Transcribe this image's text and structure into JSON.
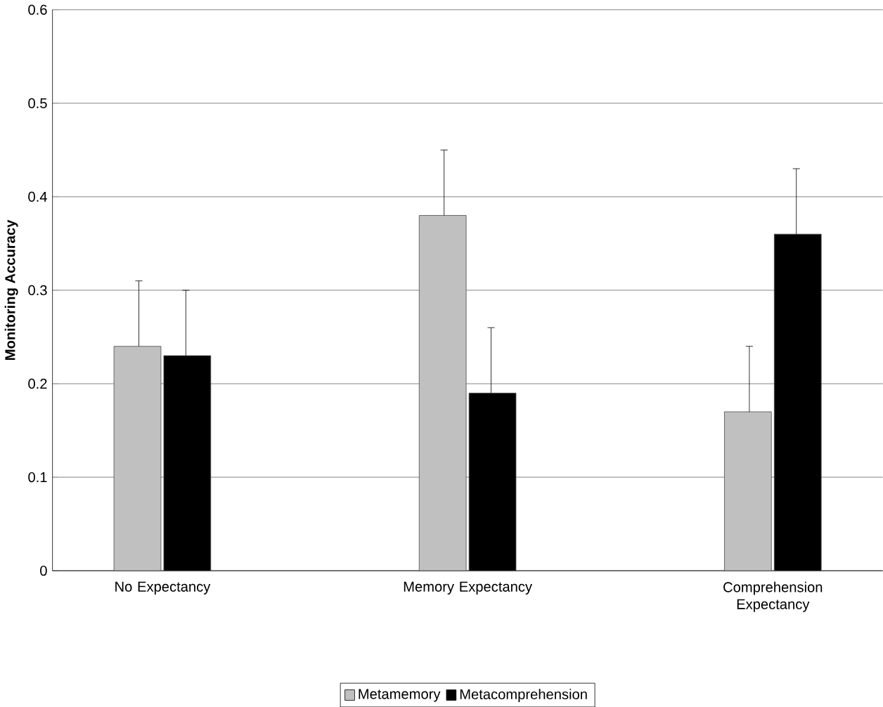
{
  "chart_data": {
    "type": "bar",
    "ylabel": "Monitoring Accuracy",
    "categories": [
      "No Expectancy",
      "Memory Expectancy",
      "Comprehension Expectancy"
    ],
    "series": [
      {
        "name": "Metamemory",
        "color": "#c0c0c0",
        "values": [
          0.24,
          0.38,
          0.17
        ],
        "errors": [
          [
            0.24,
            0.31
          ],
          [
            0.38,
            0.45
          ],
          [
            0.17,
            0.24
          ]
        ]
      },
      {
        "name": "Metacomprehension",
        "color": "#000000",
        "values": [
          0.23,
          0.19,
          0.36
        ],
        "errors": [
          [
            0.23,
            0.3
          ],
          [
            0.19,
            0.26
          ],
          [
            0.36,
            0.43
          ]
        ]
      }
    ],
    "ylim": [
      0,
      0.6
    ],
    "yticks": [
      0,
      0.1,
      0.2,
      0.3,
      0.4,
      0.5,
      0.6
    ],
    "grid": "y",
    "legend": "bottom"
  }
}
